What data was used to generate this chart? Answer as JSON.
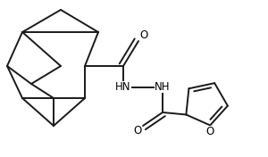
{
  "bg_color": "#ffffff",
  "line_color": "#1a1a1a",
  "line_width": 1.4,
  "font_size": 8.5,
  "figsize": [
    3.0,
    1.76
  ],
  "dpi": 100,
  "xlim": [
    0.0,
    3.0
  ],
  "ylim": [
    0.0,
    1.76
  ]
}
